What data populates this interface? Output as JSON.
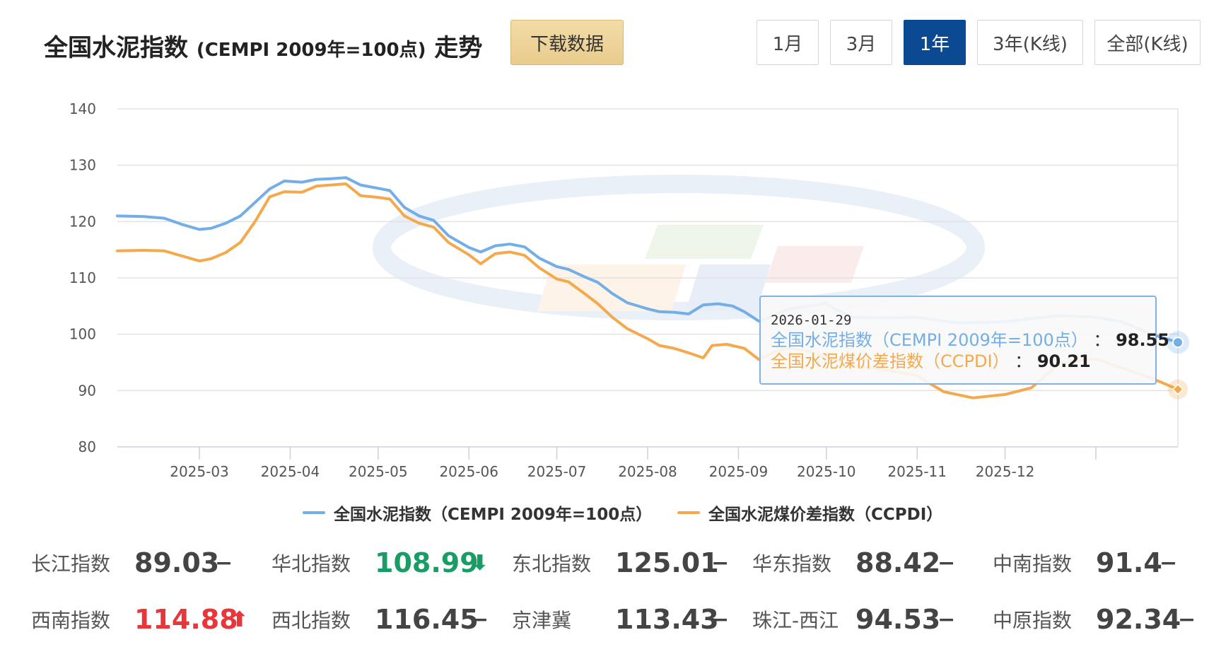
{
  "header": {
    "title_main": "全国水泥指数",
    "title_sub": "(CEMPI 2009年=100点)",
    "title_tail": "走势",
    "download_label": "下载数据",
    "ranges": [
      "1月",
      "3月",
      "1年",
      "3年(K线)",
      "全部(K线)"
    ],
    "active_range": "1年"
  },
  "colors": {
    "cempi": "#74aee6",
    "ccpdi": "#f5a94d",
    "active_button": "#0b4a92",
    "up": "#e8363a",
    "down": "#1a9c65"
  },
  "tooltip": {
    "date": "2026-01-29",
    "cempi_label": "全国水泥指数（CEMPI 2009年=100点）",
    "cempi_value": "98.55",
    "ccpdi_label": "全国水泥煤价差指数（CCPDI）",
    "ccpdi_value": "90.21"
  },
  "legend": {
    "cempi": "全国水泥指数（CEMPI 2009年=100点）",
    "ccpdi": "全国水泥煤价差指数（CCPDI）"
  },
  "chart_data": {
    "type": "line",
    "ylim": [
      80,
      140
    ],
    "yticks": [
      80,
      90,
      100,
      110,
      120,
      130,
      140
    ],
    "xlim": [
      "2025-02-01",
      "2026-01-29"
    ],
    "xticks": [
      "2025-03",
      "2025-04",
      "2025-05",
      "2025-06",
      "2025-07",
      "2025-08",
      "2025-09",
      "2025-10",
      "2025-11",
      "2025-12"
    ],
    "grid": true,
    "legend_position": "bottom",
    "series": [
      {
        "name": "全国水泥指数（CEMPI 2009年=100点）",
        "points": [
          [
            "2025-02-01",
            121.0
          ],
          [
            "2025-02-10",
            120.9
          ],
          [
            "2025-02-17",
            120.6
          ],
          [
            "2025-02-23",
            119.5
          ],
          [
            "2025-03-01",
            118.6
          ],
          [
            "2025-03-05",
            118.8
          ],
          [
            "2025-03-10",
            119.7
          ],
          [
            "2025-03-15",
            121.0
          ],
          [
            "2025-03-20",
            123.4
          ],
          [
            "2025-03-25",
            125.8
          ],
          [
            "2025-03-30",
            127.2
          ],
          [
            "2025-04-05",
            127.0
          ],
          [
            "2025-04-10",
            127.5
          ],
          [
            "2025-04-15",
            127.6
          ],
          [
            "2025-04-20",
            127.8
          ],
          [
            "2025-04-25",
            126.5
          ],
          [
            "2025-05-01",
            125.9
          ],
          [
            "2025-05-05",
            125.5
          ],
          [
            "2025-05-10",
            122.5
          ],
          [
            "2025-05-15",
            121.0
          ],
          [
            "2025-05-20",
            120.2
          ],
          [
            "2025-05-25",
            117.5
          ],
          [
            "2025-06-01",
            115.4
          ],
          [
            "2025-06-05",
            114.6
          ],
          [
            "2025-06-10",
            115.7
          ],
          [
            "2025-06-15",
            116.0
          ],
          [
            "2025-06-20",
            115.5
          ],
          [
            "2025-06-25",
            113.5
          ],
          [
            "2025-07-01",
            112.0
          ],
          [
            "2025-07-05",
            111.5
          ],
          [
            "2025-07-10",
            110.3
          ],
          [
            "2025-07-15",
            109.2
          ],
          [
            "2025-07-20",
            107.2
          ],
          [
            "2025-07-25",
            105.6
          ],
          [
            "2025-08-01",
            104.5
          ],
          [
            "2025-08-05",
            104.0
          ],
          [
            "2025-08-10",
            103.9
          ],
          [
            "2025-08-15",
            103.6
          ],
          [
            "2025-08-20",
            105.2
          ],
          [
            "2025-08-25",
            105.4
          ],
          [
            "2025-08-30",
            105.0
          ],
          [
            "2025-09-03",
            104.0
          ],
          [
            "2025-09-08",
            102.3
          ],
          [
            "2025-09-13",
            103.3
          ],
          [
            "2025-09-18",
            104.5
          ],
          [
            "2025-09-23",
            104.8
          ],
          [
            "2025-10-01",
            105.5
          ],
          [
            "2025-10-05",
            104.2
          ],
          [
            "2025-10-10",
            103.0
          ],
          [
            "2025-10-20",
            102.9
          ],
          [
            "2025-11-01",
            103.0
          ],
          [
            "2025-11-15",
            102.0
          ],
          [
            "2025-12-01",
            102.2
          ],
          [
            "2025-12-10",
            102.8
          ],
          [
            "2025-12-20",
            103.3
          ],
          [
            "2026-01-01",
            103.0
          ],
          [
            "2026-01-10",
            102.2
          ],
          [
            "2026-01-20",
            100.0
          ],
          [
            "2026-01-29",
            98.55
          ]
        ]
      },
      {
        "name": "全国水泥煤价差指数（CCPDI）",
        "points": [
          [
            "2025-02-01",
            114.8
          ],
          [
            "2025-02-10",
            114.9
          ],
          [
            "2025-02-17",
            114.8
          ],
          [
            "2025-02-23",
            113.9
          ],
          [
            "2025-03-01",
            113.0
          ],
          [
            "2025-03-05",
            113.4
          ],
          [
            "2025-03-10",
            114.5
          ],
          [
            "2025-03-15",
            116.3
          ],
          [
            "2025-03-20",
            120.0
          ],
          [
            "2025-03-25",
            124.4
          ],
          [
            "2025-03-30",
            125.3
          ],
          [
            "2025-04-05",
            125.2
          ],
          [
            "2025-04-10",
            126.3
          ],
          [
            "2025-04-15",
            126.5
          ],
          [
            "2025-04-20",
            126.7
          ],
          [
            "2025-04-25",
            124.6
          ],
          [
            "2025-05-01",
            124.3
          ],
          [
            "2025-05-05",
            124.0
          ],
          [
            "2025-05-10",
            121.0
          ],
          [
            "2025-05-15",
            119.7
          ],
          [
            "2025-05-20",
            119.0
          ],
          [
            "2025-05-25",
            116.3
          ],
          [
            "2025-06-01",
            114.1
          ],
          [
            "2025-06-05",
            112.5
          ],
          [
            "2025-06-10",
            114.3
          ],
          [
            "2025-06-15",
            114.6
          ],
          [
            "2025-06-20",
            114.0
          ],
          [
            "2025-06-25",
            111.8
          ],
          [
            "2025-07-01",
            109.8
          ],
          [
            "2025-07-05",
            109.3
          ],
          [
            "2025-07-10",
            107.4
          ],
          [
            "2025-07-15",
            105.4
          ],
          [
            "2025-07-20",
            103.0
          ],
          [
            "2025-07-25",
            101.0
          ],
          [
            "2025-08-01",
            99.2
          ],
          [
            "2025-08-05",
            98.0
          ],
          [
            "2025-08-10",
            97.5
          ],
          [
            "2025-08-15",
            96.7
          ],
          [
            "2025-08-20",
            95.8
          ],
          [
            "2025-08-23",
            98.0
          ],
          [
            "2025-08-28",
            98.2
          ],
          [
            "2025-09-03",
            97.5
          ],
          [
            "2025-09-08",
            95.5
          ],
          [
            "2025-09-13",
            96.8
          ],
          [
            "2025-09-18",
            97.5
          ],
          [
            "2025-09-23",
            97.2
          ],
          [
            "2025-10-01",
            96.0
          ],
          [
            "2025-10-10",
            94.5
          ],
          [
            "2025-10-20",
            93.8
          ],
          [
            "2025-11-01",
            92.6
          ],
          [
            "2025-11-10",
            89.8
          ],
          [
            "2025-11-20",
            88.7
          ],
          [
            "2025-12-01",
            89.3
          ],
          [
            "2025-12-10",
            90.5
          ],
          [
            "2025-12-20",
            95.0
          ],
          [
            "2026-01-01",
            95.6
          ],
          [
            "2026-01-10",
            94.0
          ],
          [
            "2026-01-20",
            92.2
          ],
          [
            "2026-01-29",
            90.21
          ]
        ]
      }
    ]
  },
  "indices": [
    {
      "name": "长江指数",
      "value": "89.03",
      "trend": "flat"
    },
    {
      "name": "华北指数",
      "value": "108.99",
      "trend": "down"
    },
    {
      "name": "东北指数",
      "value": "125.01",
      "trend": "flat"
    },
    {
      "name": "华东指数",
      "value": "88.42",
      "trend": "flat"
    },
    {
      "name": "中南指数",
      "value": "91.4",
      "trend": "flat"
    },
    {
      "name": "西南指数",
      "value": "114.88",
      "trend": "up"
    },
    {
      "name": "西北指数",
      "value": "116.45",
      "trend": "flat"
    },
    {
      "name": "京津冀",
      "value": "113.43",
      "trend": "flat"
    },
    {
      "name": "珠江-西江",
      "value": "94.53",
      "trend": "flat"
    },
    {
      "name": "中原指数",
      "value": "92.34",
      "trend": "flat"
    }
  ]
}
